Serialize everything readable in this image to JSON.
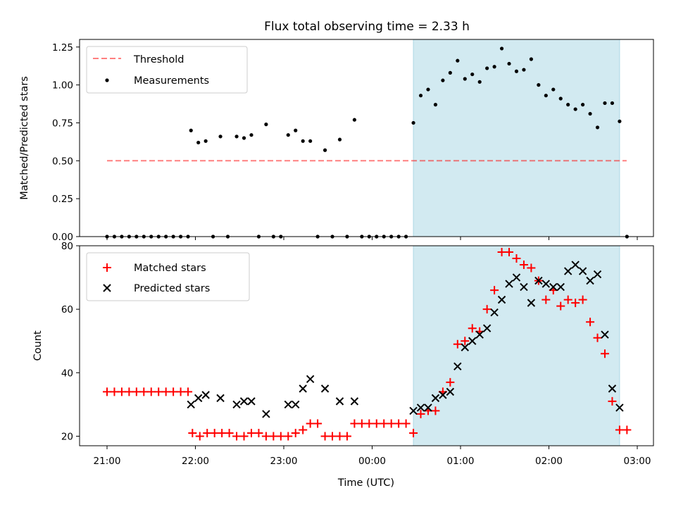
{
  "title": "Flux total observing time = 2.33 h",
  "colors": {
    "shade": "#add8e6",
    "threshold": "#ff0000",
    "measurement": "#000000",
    "matched": "#ff0000",
    "predicted": "#000000"
  },
  "chart_data": [
    {
      "type": "scatter",
      "ylabel": "Matched/Predicted stars",
      "xlabel": "",
      "ylim": [
        0,
        1.3
      ],
      "yticks": [
        0,
        0.25,
        0.5,
        0.75,
        1.0,
        1.25
      ],
      "ytick_labels": [
        "0.00",
        "0.25",
        "0.50",
        "0.75",
        "1.00",
        "1.25"
      ],
      "grid": false,
      "legend_position": "top-left",
      "shaded_x_range": [
        "00:28",
        "02:48"
      ],
      "threshold": {
        "name": "Threshold",
        "value": 0.5,
        "x_range": [
          "21:00",
          "02:48"
        ],
        "style": "dashed"
      },
      "series": [
        {
          "name": "Measurements",
          "marker": "dot",
          "points": [
            [
              "21:00",
              0
            ],
            [
              "21:05",
              0
            ],
            [
              "21:10",
              0
            ],
            [
              "21:15",
              0
            ],
            [
              "21:20",
              0
            ],
            [
              "21:25",
              0
            ],
            [
              "21:30",
              0
            ],
            [
              "21:35",
              0
            ],
            [
              "21:40",
              0
            ],
            [
              "21:45",
              0
            ],
            [
              "21:50",
              0
            ],
            [
              "21:55",
              0
            ],
            [
              "21:57",
              0.7
            ],
            [
              "22:02",
              0.62
            ],
            [
              "22:07",
              0.63
            ],
            [
              "22:12",
              0
            ],
            [
              "22:17",
              0.66
            ],
            [
              "22:22",
              0
            ],
            [
              "22:28",
              0.66
            ],
            [
              "22:33",
              0.65
            ],
            [
              "22:38",
              0.67
            ],
            [
              "22:43",
              0
            ],
            [
              "22:48",
              0.74
            ],
            [
              "22:53",
              0
            ],
            [
              "22:58",
              0
            ],
            [
              "23:03",
              0.67
            ],
            [
              "23:08",
              0.7
            ],
            [
              "23:13",
              0.63
            ],
            [
              "23:18",
              0.63
            ],
            [
              "23:23",
              0
            ],
            [
              "23:28",
              0.57
            ],
            [
              "23:33",
              0
            ],
            [
              "23:38",
              0.64
            ],
            [
              "23:43",
              0
            ],
            [
              "23:48",
              0.77
            ],
            [
              "23:53",
              0
            ],
            [
              "23:58",
              0
            ],
            [
              "00:03",
              0
            ],
            [
              "00:08",
              0
            ],
            [
              "00:13",
              0
            ],
            [
              "00:18",
              0
            ],
            [
              "00:23",
              0
            ],
            [
              "00:28",
              0.75
            ],
            [
              "00:33",
              0.93
            ],
            [
              "00:38",
              0.97
            ],
            [
              "00:43",
              0.87
            ],
            [
              "00:48",
              1.03
            ],
            [
              "00:53",
              1.08
            ],
            [
              "00:58",
              1.16
            ],
            [
              "01:03",
              1.04
            ],
            [
              "01:08",
              1.07
            ],
            [
              "01:13",
              1.02
            ],
            [
              "01:18",
              1.11
            ],
            [
              "01:23",
              1.12
            ],
            [
              "01:28",
              1.24
            ],
            [
              "01:33",
              1.14
            ],
            [
              "01:38",
              1.09
            ],
            [
              "01:43",
              1.1
            ],
            [
              "01:48",
              1.17
            ],
            [
              "01:53",
              1.0
            ],
            [
              "01:58",
              0.93
            ],
            [
              "02:03",
              0.97
            ],
            [
              "02:08",
              0.91
            ],
            [
              "02:13",
              0.87
            ],
            [
              "02:18",
              0.84
            ],
            [
              "02:23",
              0.87
            ],
            [
              "02:28",
              0.81
            ],
            [
              "02:33",
              0.72
            ],
            [
              "02:38",
              0.88
            ],
            [
              "02:43",
              0.88
            ],
            [
              "02:48",
              0.76
            ],
            [
              "02:53",
              0
            ]
          ]
        }
      ]
    },
    {
      "type": "scatter",
      "ylabel": "Count",
      "xlabel": "Time (UTC)",
      "ylim": [
        17,
        80
      ],
      "yticks": [
        20,
        40,
        60,
        80
      ],
      "ytick_labels": [
        "20",
        "40",
        "60",
        "80"
      ],
      "xticks": [
        "21:00",
        "22:00",
        "23:00",
        "00:00",
        "01:00",
        "02:00",
        "03:00"
      ],
      "grid": false,
      "legend_position": "top-left",
      "shaded_x_range": [
        "00:28",
        "02:48"
      ],
      "series": [
        {
          "name": "Matched stars",
          "marker": "plus",
          "points": [
            [
              "21:00",
              34
            ],
            [
              "21:05",
              34
            ],
            [
              "21:10",
              34
            ],
            [
              "21:15",
              34
            ],
            [
              "21:20",
              34
            ],
            [
              "21:25",
              34
            ],
            [
              "21:30",
              34
            ],
            [
              "21:35",
              34
            ],
            [
              "21:40",
              34
            ],
            [
              "21:45",
              34
            ],
            [
              "21:50",
              34
            ],
            [
              "21:55",
              34
            ],
            [
              "21:58",
              21
            ],
            [
              "22:03",
              20
            ],
            [
              "22:08",
              21
            ],
            [
              "22:13",
              21
            ],
            [
              "22:18",
              21
            ],
            [
              "22:23",
              21
            ],
            [
              "22:28",
              20
            ],
            [
              "22:33",
              20
            ],
            [
              "22:38",
              21
            ],
            [
              "22:43",
              21
            ],
            [
              "22:48",
              20
            ],
            [
              "22:53",
              20
            ],
            [
              "22:58",
              20
            ],
            [
              "23:03",
              20
            ],
            [
              "23:08",
              21
            ],
            [
              "23:13",
              22
            ],
            [
              "23:18",
              24
            ],
            [
              "23:23",
              24
            ],
            [
              "23:28",
              20
            ],
            [
              "23:33",
              20
            ],
            [
              "23:38",
              20
            ],
            [
              "23:43",
              20
            ],
            [
              "23:48",
              24
            ],
            [
              "23:53",
              24
            ],
            [
              "23:58",
              24
            ],
            [
              "00:03",
              24
            ],
            [
              "00:08",
              24
            ],
            [
              "00:13",
              24
            ],
            [
              "00:18",
              24
            ],
            [
              "00:23",
              24
            ],
            [
              "00:28",
              21
            ],
            [
              "00:33",
              27
            ],
            [
              "00:38",
              28
            ],
            [
              "00:43",
              28
            ],
            [
              "00:48",
              34
            ],
            [
              "00:53",
              37
            ],
            [
              "00:58",
              49
            ],
            [
              "01:03",
              50
            ],
            [
              "01:08",
              54
            ],
            [
              "01:13",
              53
            ],
            [
              "01:18",
              60
            ],
            [
              "01:23",
              66
            ],
            [
              "01:28",
              78
            ],
            [
              "01:33",
              78
            ],
            [
              "01:38",
              76
            ],
            [
              "01:43",
              74
            ],
            [
              "01:48",
              73
            ],
            [
              "01:53",
              69
            ],
            [
              "01:58",
              63
            ],
            [
              "02:03",
              66
            ],
            [
              "02:08",
              61
            ],
            [
              "02:13",
              63
            ],
            [
              "02:18",
              62
            ],
            [
              "02:23",
              63
            ],
            [
              "02:28",
              56
            ],
            [
              "02:33",
              51
            ],
            [
              "02:38",
              46
            ],
            [
              "02:43",
              31
            ],
            [
              "02:48",
              22
            ],
            [
              "02:53",
              22
            ]
          ]
        },
        {
          "name": "Predicted stars",
          "marker": "x",
          "points": [
            [
              "21:57",
              30
            ],
            [
              "22:02",
              32
            ],
            [
              "22:07",
              33
            ],
            [
              "22:17",
              32
            ],
            [
              "22:28",
              30
            ],
            [
              "22:33",
              31
            ],
            [
              "22:38",
              31
            ],
            [
              "22:48",
              27
            ],
            [
              "23:03",
              30
            ],
            [
              "23:08",
              30
            ],
            [
              "23:13",
              35
            ],
            [
              "23:18",
              38
            ],
            [
              "23:28",
              35
            ],
            [
              "23:38",
              31
            ],
            [
              "23:48",
              31
            ],
            [
              "00:28",
              28
            ],
            [
              "00:33",
              29
            ],
            [
              "00:38",
              29
            ],
            [
              "00:43",
              32
            ],
            [
              "00:48",
              33
            ],
            [
              "00:53",
              34
            ],
            [
              "00:58",
              42
            ],
            [
              "01:03",
              48
            ],
            [
              "01:08",
              50
            ],
            [
              "01:13",
              52
            ],
            [
              "01:18",
              54
            ],
            [
              "01:23",
              59
            ],
            [
              "01:28",
              63
            ],
            [
              "01:33",
              68
            ],
            [
              "01:38",
              70
            ],
            [
              "01:43",
              67
            ],
            [
              "01:48",
              62
            ],
            [
              "01:53",
              69
            ],
            [
              "01:58",
              68
            ],
            [
              "02:03",
              67
            ],
            [
              "02:08",
              67
            ],
            [
              "02:13",
              72
            ],
            [
              "02:18",
              74
            ],
            [
              "02:23",
              72
            ],
            [
              "02:28",
              69
            ],
            [
              "02:33",
              71
            ],
            [
              "02:38",
              52
            ],
            [
              "02:43",
              35
            ],
            [
              "02:48",
              29
            ]
          ]
        }
      ]
    }
  ]
}
